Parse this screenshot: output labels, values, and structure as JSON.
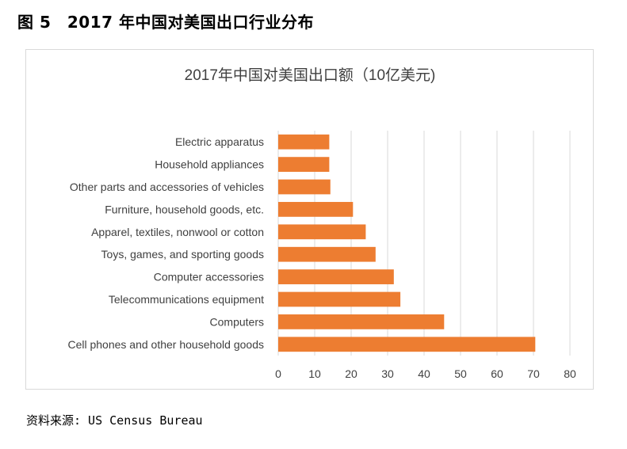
{
  "figure": {
    "title": "图 5　2017 年中国对美国出口行业分布",
    "source": "资料来源: US Census Bureau"
  },
  "chart_data": {
    "type": "bar",
    "orientation": "horizontal",
    "title": "2017年中国对美国出口额（10亿美元)",
    "categories": [
      "Electric apparatus",
      "Household appliances",
      "Other parts and accessories of vehicles",
      "Furniture, household goods, etc.",
      "Apparel, textiles, nonwool or cotton",
      "Toys, games, and sporting goods",
      "Computer accessories",
      "Telecommunications equipment",
      "Computers",
      "Cell phones and other household goods"
    ],
    "values": [
      14,
      14,
      14.3,
      20.5,
      24,
      26.7,
      31.7,
      33.5,
      45.5,
      70.5
    ],
    "xlim": [
      0,
      80
    ],
    "xticks": [
      0,
      10,
      20,
      30,
      40,
      50,
      60,
      70,
      80
    ],
    "bar_color": "#ED7D31",
    "grid": true,
    "grid_color": "#d9d9d9",
    "legend": "none"
  }
}
